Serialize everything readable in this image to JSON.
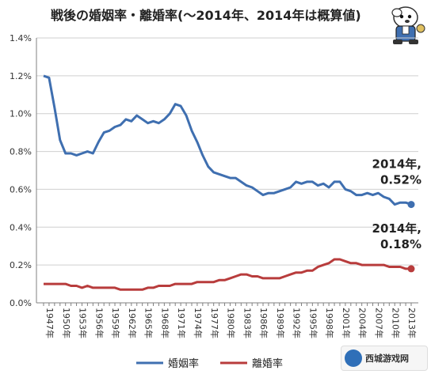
{
  "title": "戦後の婚姻率・離婚率(〜2014年、2014年は概算値)",
  "watermark_text": "西城游戏网",
  "colors": {
    "marriage": "#3f6fb0",
    "divorce": "#b83c3c",
    "grid": "#cfcfcf",
    "axis": "#808080"
  },
  "chart_data": {
    "type": "line",
    "title": "戦後の婚姻率・離婚率(〜2014年、2014年は概算値)",
    "xlabel": "",
    "ylabel": "",
    "ylim": [
      0,
      1.4
    ],
    "yticks": [
      "0.0%",
      "0.2%",
      "0.4%",
      "0.6%",
      "0.8%",
      "1.0%",
      "1.2%",
      "1.4%"
    ],
    "xtick_labels": [
      "1947年",
      "1950年",
      "1953年",
      "1956年",
      "1959年",
      "1962年",
      "1965年",
      "1968年",
      "1971年",
      "1974年",
      "1977年",
      "1980年",
      "1983年",
      "1986年",
      "1989年",
      "1992年",
      "1995年",
      "1998年",
      "2001年",
      "2004年",
      "2007年",
      "2010年",
      "2013年"
    ],
    "x_start": 1947,
    "x_end": 2014,
    "grid": true,
    "legend": "bottom",
    "series": [
      {
        "name": "婚姻率",
        "values": [
          1.2,
          1.19,
          1.03,
          0.86,
          0.79,
          0.79,
          0.78,
          0.79,
          0.8,
          0.79,
          0.85,
          0.9,
          0.91,
          0.93,
          0.94,
          0.97,
          0.96,
          0.99,
          0.97,
          0.95,
          0.96,
          0.95,
          0.97,
          1.0,
          1.05,
          1.04,
          0.99,
          0.91,
          0.85,
          0.78,
          0.72,
          0.69,
          0.68,
          0.67,
          0.66,
          0.66,
          0.64,
          0.62,
          0.61,
          0.59,
          0.57,
          0.58,
          0.58,
          0.59,
          0.6,
          0.61,
          0.64,
          0.63,
          0.64,
          0.64,
          0.62,
          0.63,
          0.61,
          0.64,
          0.64,
          0.6,
          0.59,
          0.57,
          0.57,
          0.58,
          0.57,
          0.58,
          0.56,
          0.55,
          0.52,
          0.53,
          0.53,
          0.52
        ]
      },
      {
        "name": "離婚率",
        "values": [
          0.1,
          0.1,
          0.1,
          0.1,
          0.1,
          0.09,
          0.09,
          0.08,
          0.09,
          0.08,
          0.08,
          0.08,
          0.08,
          0.08,
          0.07,
          0.07,
          0.07,
          0.07,
          0.07,
          0.08,
          0.08,
          0.09,
          0.09,
          0.09,
          0.1,
          0.1,
          0.1,
          0.1,
          0.11,
          0.11,
          0.11,
          0.11,
          0.12,
          0.12,
          0.13,
          0.14,
          0.15,
          0.15,
          0.14,
          0.14,
          0.13,
          0.13,
          0.13,
          0.13,
          0.14,
          0.15,
          0.16,
          0.16,
          0.17,
          0.17,
          0.19,
          0.2,
          0.21,
          0.23,
          0.23,
          0.22,
          0.21,
          0.21,
          0.2,
          0.2,
          0.2,
          0.2,
          0.2,
          0.19,
          0.19,
          0.19,
          0.18,
          0.18
        ]
      }
    ],
    "annotations": [
      {
        "series": 0,
        "line1": "2014年,",
        "line2": "0.52%"
      },
      {
        "series": 1,
        "line1": "2014年,",
        "line2": "0.18%"
      }
    ]
  }
}
